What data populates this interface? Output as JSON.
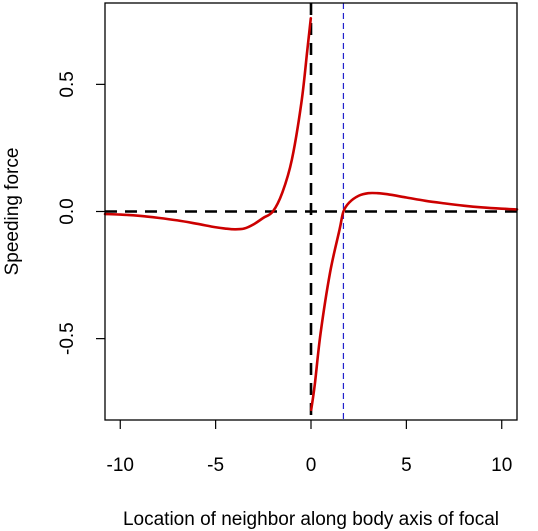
{
  "chart_data": {
    "type": "line",
    "title": "",
    "xlabel": "Location of neighbor along body axis of focal",
    "ylabel": "Speeding force",
    "xlim": [
      -10.8,
      10.8
    ],
    "ylim": [
      -0.82,
      0.82
    ],
    "x_ticks": [
      -10,
      -5,
      0,
      5,
      10
    ],
    "x_tick_labels": [
      "-10",
      "-5",
      "0",
      "5",
      "10"
    ],
    "y_ticks": [
      -0.5,
      0.0,
      0.5
    ],
    "y_tick_labels": [
      "-0.5",
      "0.0",
      "0.5"
    ],
    "grid": false,
    "legend": "none",
    "series": [
      {
        "color": "#cc0000",
        "style": "solid",
        "x": [
          -10.8,
          -10,
          -9,
          -8,
          -7,
          -6,
          -5,
          -4.5,
          -4,
          -3.5,
          -3,
          -2.5,
          -2,
          -1.5,
          -1,
          -0.5,
          -0.2,
          -0.01
        ],
        "y": [
          -0.01,
          -0.012,
          -0.017,
          -0.025,
          -0.035,
          -0.048,
          -0.062,
          -0.067,
          -0.07,
          -0.067,
          -0.05,
          -0.025,
          0.0,
          0.075,
          0.205,
          0.43,
          0.63,
          0.76
        ]
      },
      {
        "color": "#cc0000",
        "style": "solid",
        "x": [
          0.01,
          0.2,
          0.5,
          1,
          1.5,
          1.7,
          2,
          2.5,
          3,
          3.5,
          4,
          5,
          6,
          7,
          8,
          9,
          10,
          10.8
        ],
        "y": [
          -0.78,
          -0.68,
          -0.48,
          -0.24,
          -0.07,
          0.0,
          0.035,
          0.062,
          0.072,
          0.072,
          0.068,
          0.055,
          0.042,
          0.032,
          0.023,
          0.016,
          0.011,
          0.008
        ]
      }
    ],
    "reference_lines": [
      {
        "orientation": "horizontal",
        "value": 0,
        "color": "#000000",
        "style": "dashed"
      },
      {
        "orientation": "vertical",
        "value": 0,
        "color": "#000000",
        "style": "dashed"
      },
      {
        "orientation": "vertical",
        "value": 1.7,
        "color": "#2222cc",
        "style": "dashed"
      }
    ]
  }
}
